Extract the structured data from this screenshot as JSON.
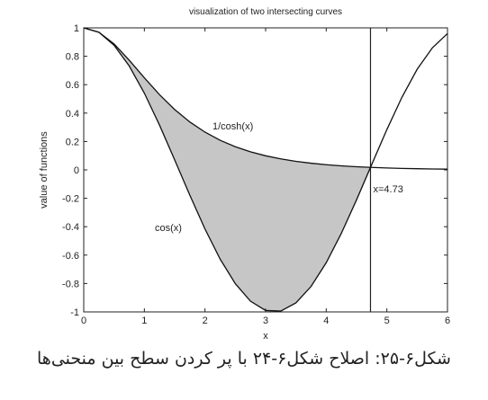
{
  "chart_data": {
    "type": "line",
    "title": "visualization of two intersecting curves",
    "xlabel": "x",
    "ylabel": "value of functions",
    "x": [
      0,
      0.25,
      0.5,
      0.75,
      1,
      1.25,
      1.5,
      1.75,
      2,
      2.25,
      2.5,
      2.75,
      3,
      3.25,
      3.5,
      3.75,
      4,
      4.25,
      4.5,
      4.75,
      5,
      5.25,
      5.5,
      5.75,
      6
    ],
    "series": [
      {
        "name": "cos(x)",
        "color": "#111111",
        "values": [
          1,
          0.9689,
          0.8776,
          0.7317,
          0.5403,
          0.3153,
          0.0707,
          -0.1782,
          -0.4161,
          -0.6282,
          -0.8011,
          -0.9243,
          -0.99,
          -0.9941,
          -0.9365,
          -0.8206,
          -0.6536,
          -0.4461,
          -0.2108,
          0.0376,
          0.2837,
          0.5125,
          0.7087,
          0.8589,
          0.9602
        ]
      },
      {
        "name": "1/cosh(x)",
        "color": "#111111",
        "values": [
          1,
          0.9695,
          0.8868,
          0.7724,
          0.6481,
          0.5295,
          0.4251,
          0.3374,
          0.2658,
          0.2085,
          0.1631,
          0.1273,
          0.0993,
          0.0774,
          0.0603,
          0.047,
          0.0366,
          0.0285,
          0.0222,
          0.0173,
          0.0135,
          0.0105,
          0.0082,
          0.0064,
          0.005
        ]
      }
    ],
    "fill_color": "#c6c6c6",
    "vline": {
      "value": 4.73,
      "label": "x=4.73"
    },
    "xlim": [
      0,
      6
    ],
    "xticks": [
      0,
      1,
      2,
      3,
      4,
      5,
      6
    ],
    "ylim": [
      -1,
      1
    ],
    "yticks": [
      -1,
      -0.8,
      -0.6,
      -0.4,
      -0.2,
      0,
      0.2,
      0.4,
      0.6,
      0.8,
      1
    ]
  },
  "caption": "شکل۶-۲۵: اصلاح شکل۶-۲۴ با پر کردن سطح بین منحنی‌ها"
}
